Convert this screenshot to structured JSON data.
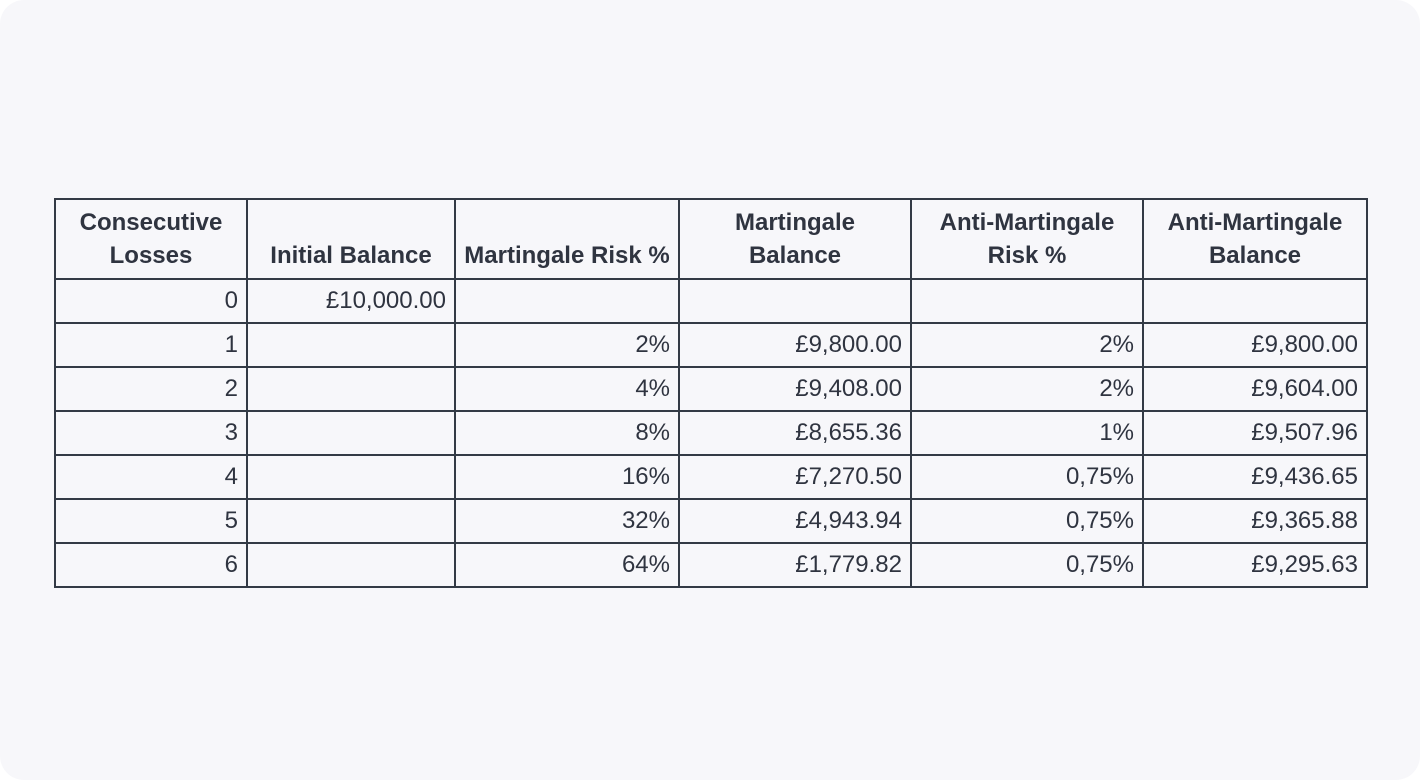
{
  "table": {
    "headers": [
      "Consecutive Losses",
      "Initial Balance",
      "Martingale Risk %",
      "Martingale Balance",
      "Anti-Martingale Risk %",
      "Anti-Martingale Balance"
    ],
    "rows": [
      [
        "0",
        "£10,000.00",
        null,
        null,
        null,
        null
      ],
      [
        "1",
        null,
        "2%",
        "£9,800.00",
        "2%",
        "£9,800.00"
      ],
      [
        "2",
        null,
        "4%",
        "£9,408.00",
        "2%",
        "£9,604.00"
      ],
      [
        "3",
        null,
        "8%",
        "£8,655.36",
        "1%",
        "£9,507.96"
      ],
      [
        "4",
        null,
        "16%",
        "£7,270.50",
        "0,75%",
        "£9,436.65"
      ],
      [
        "5",
        null,
        "32%",
        "£4,943.94",
        "0,75%",
        "£9,365.88"
      ],
      [
        "6",
        null,
        "64%",
        "£1,779.82",
        "0,75%",
        "£9,295.63"
      ]
    ]
  }
}
